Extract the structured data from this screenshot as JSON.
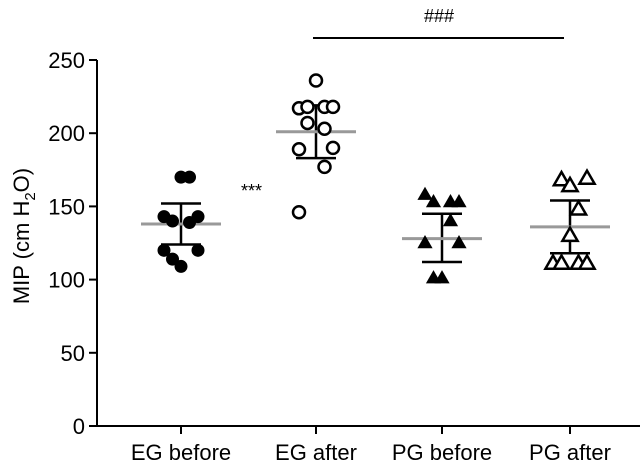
{
  "chart_data": {
    "type": "scatter",
    "subtype": "dot-plot-with-mean-and-sd",
    "ylabel": {
      "main": "MIP (cm H",
      "sub": "2",
      "tail": "O)"
    },
    "ylim": [
      0,
      250
    ],
    "yticks": [
      0,
      50,
      100,
      150,
      200,
      250
    ],
    "grid": false,
    "legend": "none",
    "categories": [
      "EG before",
      "EG after",
      "PG before",
      "PG after"
    ],
    "series": [
      {
        "category": "EG before",
        "marker": "circle-filled",
        "mean": 138,
        "sd_low": 124,
        "sd_high": 152,
        "points": [
          {
            "offset": 0,
            "y": 170
          },
          {
            "offset": 0.5,
            "y": 170
          },
          {
            "offset": -1,
            "y": 143
          },
          {
            "offset": -0.5,
            "y": 140
          },
          {
            "offset": 0.5,
            "y": 139
          },
          {
            "offset": 1,
            "y": 143
          },
          {
            "offset": -1,
            "y": 120
          },
          {
            "offset": 1,
            "y": 120
          },
          {
            "offset": -0.5,
            "y": 114
          },
          {
            "offset": 0,
            "y": 109
          }
        ]
      },
      {
        "category": "EG after",
        "marker": "circle-open",
        "mean": 201,
        "sd_low": 183,
        "sd_high": 219,
        "points": [
          {
            "offset": 0,
            "y": 236
          },
          {
            "offset": -1,
            "y": 217
          },
          {
            "offset": -0.5,
            "y": 218
          },
          {
            "offset": 0.5,
            "y": 218
          },
          {
            "offset": 1,
            "y": 218
          },
          {
            "offset": -0.5,
            "y": 207
          },
          {
            "offset": 0.5,
            "y": 203
          },
          {
            "offset": -1,
            "y": 189
          },
          {
            "offset": 1,
            "y": 190
          },
          {
            "offset": 0.5,
            "y": 177
          },
          {
            "offset": -1,
            "y": 146
          }
        ]
      },
      {
        "category": "PG before",
        "marker": "triangle-filled",
        "mean": 128,
        "sd_low": 112,
        "sd_high": 145,
        "points": [
          {
            "offset": -1,
            "y": 158
          },
          {
            "offset": -0.5,
            "y": 153
          },
          {
            "offset": 0.5,
            "y": 153
          },
          {
            "offset": 1,
            "y": 153
          },
          {
            "offset": 0.5,
            "y": 140
          },
          {
            "offset": -1,
            "y": 125
          },
          {
            "offset": 1,
            "y": 125
          },
          {
            "offset": -0.5,
            "y": 101
          },
          {
            "offset": 0,
            "y": 101
          }
        ]
      },
      {
        "category": "PG after",
        "marker": "triangle-open",
        "mean": 136,
        "sd_low": 118,
        "sd_high": 154,
        "points": [
          {
            "offset": -0.5,
            "y": 168
          },
          {
            "offset": 1,
            "y": 169
          },
          {
            "offset": 0,
            "y": 164
          },
          {
            "offset": 0.5,
            "y": 148
          },
          {
            "offset": 0,
            "y": 130
          },
          {
            "offset": -1,
            "y": 111
          },
          {
            "offset": -0.5,
            "y": 111
          },
          {
            "offset": 0.5,
            "y": 111
          },
          {
            "offset": 1,
            "y": 111
          }
        ]
      }
    ],
    "annotations": [
      {
        "text": "***",
        "between": [
          "EG before",
          "EG after"
        ],
        "y": 166
      }
    ],
    "comparisons": [
      {
        "text": "###",
        "from": "EG after",
        "to": "PG after"
      }
    ],
    "colors": {
      "mean_line": "#999999",
      "marker": "#000000",
      "axis": "#000000"
    }
  }
}
